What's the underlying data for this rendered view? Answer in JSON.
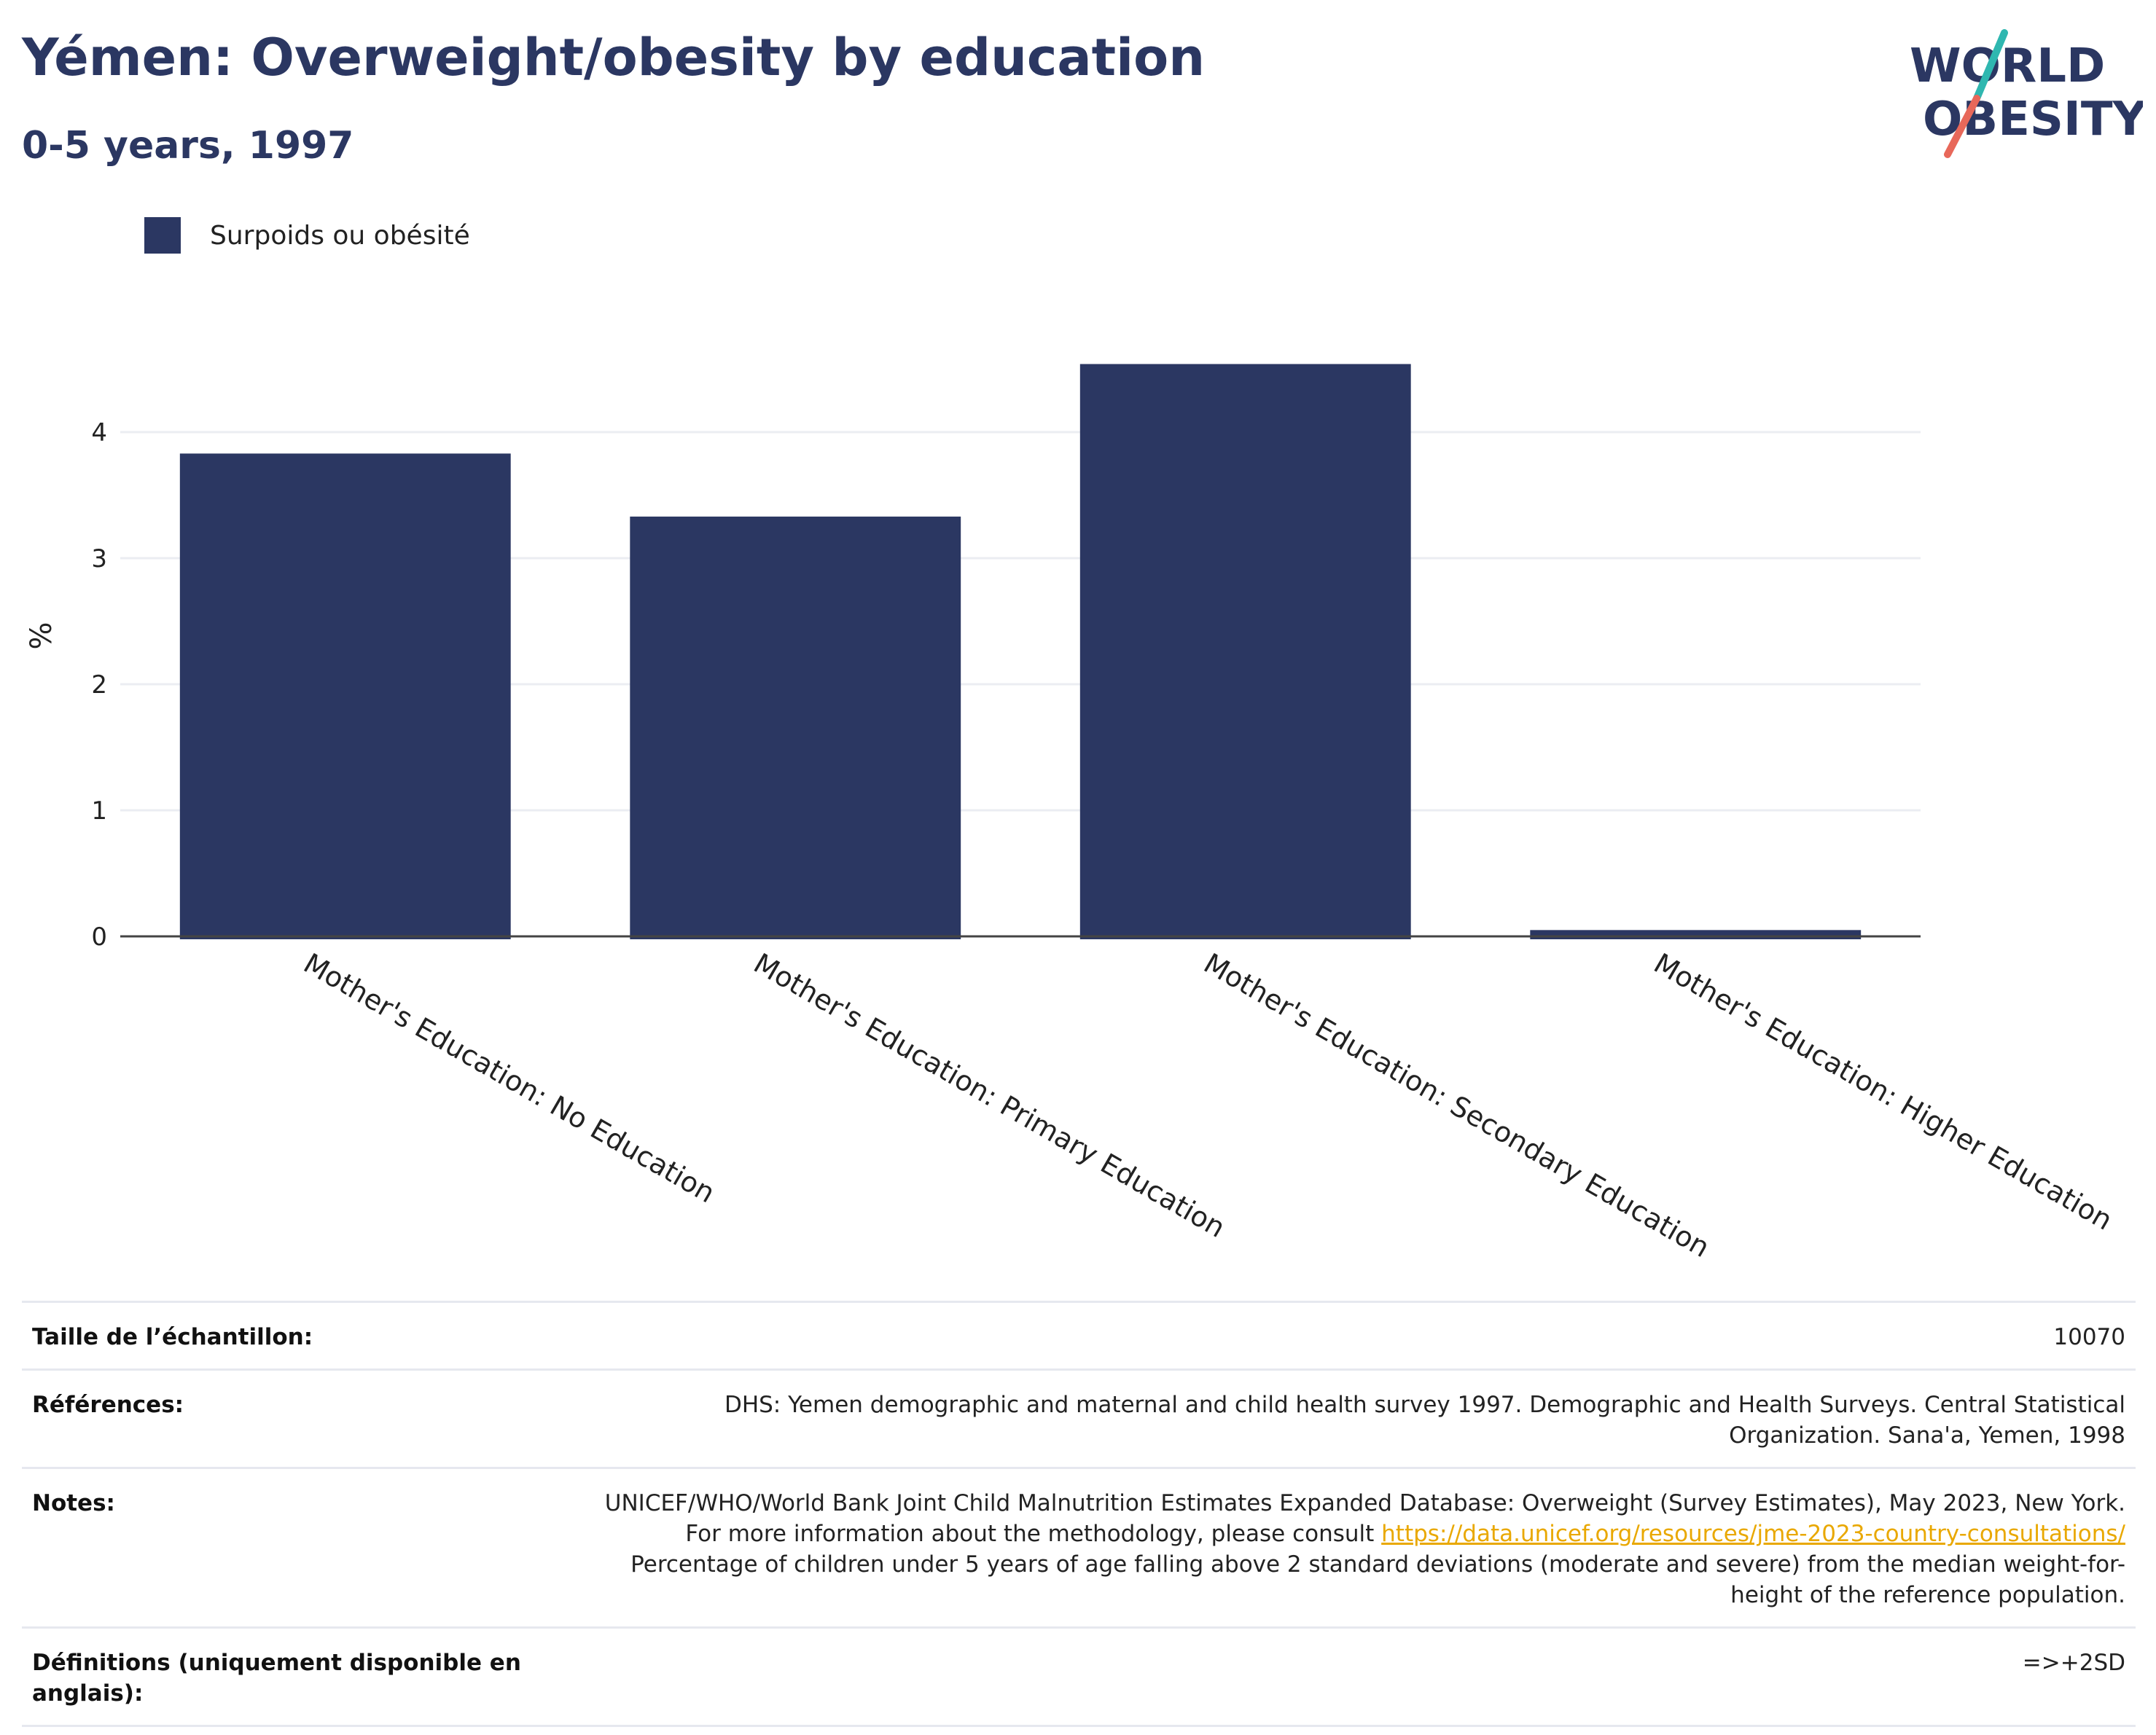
{
  "title": "Yémen: Overweight/obesity by education",
  "subtitle": "0-5 years, 1997",
  "logo": {
    "line1": "WORLD",
    "line2": "OBESITY",
    "slash_color_top": "#2fb7b0",
    "slash_color_bottom": "#e8685a"
  },
  "colors": {
    "bar": "#2b3762",
    "grid": "#ebedf2",
    "axis": "#444444"
  },
  "legend": {
    "label": "Surpoids ou obésité"
  },
  "chart_data": {
    "type": "bar",
    "categories": [
      "Mother's Education: No Education",
      "Mother's Education: Primary Education",
      "Mother's Education: Secondary Education",
      "Mother's Education: Higher Education"
    ],
    "series": [
      {
        "name": "Surpoids ou obésité",
        "values": [
          3.83,
          3.33,
          4.54,
          0.05
        ]
      }
    ],
    "ylabel": "%",
    "xlabel": "",
    "ylim": [
      0,
      5
    ],
    "yticks": [
      0,
      1,
      2,
      3,
      4
    ],
    "grid": true,
    "legend_position": "top-left"
  },
  "info": {
    "sample_label": "Taille de l’échantillon:",
    "sample_value": "10070",
    "refs_label": "Références:",
    "refs_value": "DHS: Yemen demographic and maternal and child health survey 1997. Demographic and Health Surveys. Central Statistical Organization. Sana'a, Yemen, 1998",
    "notes_label": "Notes:",
    "notes_text1": "UNICEF/WHO/World Bank Joint Child Malnutrition Estimates Expanded Database: Overweight (Survey Estimates), May 2023, New York. For more information about the methodology, please consult ",
    "notes_link": "https://data.unicef.org/resources/jme-2023-country-consultations/",
    "notes_text2": "Percentage of children under 5 years of age falling above 2 standard deviations (moderate and severe) from the median weight-for-height of the reference population.",
    "defs_label": "Définitions (uniquement disponible en anglais):",
    "defs_value": "=>+2SD"
  }
}
